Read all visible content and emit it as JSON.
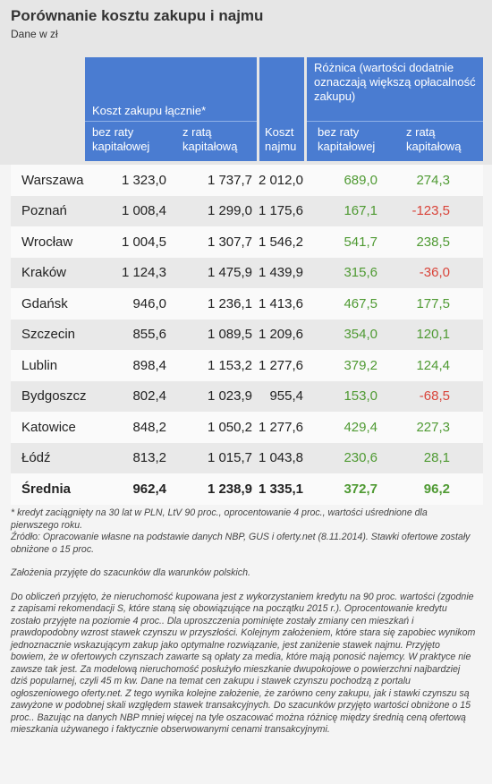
{
  "header": {
    "title": "Porównanie kosztu zakupu i najmu",
    "subtitle": "Dane w zł"
  },
  "table": {
    "group_headers": [
      "Koszt zakupu łącznie*",
      "Różnica (wartości dodatnie oznaczają większą opłacalność zakupu)"
    ],
    "columns": [
      "bez raty kapitałowej",
      "z ratą kapitałową",
      "Koszt najmu",
      "bez raty kapitałowej",
      "z ratą kapitałową"
    ],
    "rows": [
      [
        "Warszawa",
        "1 323,0",
        "1 737,7",
        "2 012,0",
        "689,0",
        "274,3"
      ],
      [
        "Poznań",
        "1 008,4",
        "1 299,0",
        "1 175,6",
        "167,1",
        "-123,5"
      ],
      [
        "Wrocław",
        "1 004,5",
        "1 307,7",
        "1 546,2",
        "541,7",
        "238,5"
      ],
      [
        "Kraków",
        "1 124,3",
        "1 475,9",
        "1 439,9",
        "315,6",
        "-36,0"
      ],
      [
        "Gdańsk",
        "946,0",
        "1 236,1",
        "1 413,6",
        "467,5",
        "177,5"
      ],
      [
        "Szczecin",
        "855,6",
        "1 089,5",
        "1 209,6",
        "354,0",
        "120,1"
      ],
      [
        "Lublin",
        "898,4",
        "1 153,2",
        "1 277,6",
        "379,2",
        "124,4"
      ],
      [
        "Bydgoszcz",
        "802,4",
        "1 023,9",
        "955,4",
        "153,0",
        "-68,5"
      ],
      [
        "Katowice",
        "848,2",
        "1 050,2",
        "1 277,6",
        "429,4",
        "227,3"
      ],
      [
        "Łódź",
        "813,2",
        "1 015,7",
        "1 043,8",
        "230,6",
        "28,1"
      ],
      [
        "Średnia",
        "962,4",
        "1 238,9",
        "1 335,1",
        "372,7",
        "96,2"
      ]
    ]
  },
  "notes": [
    "* kredyt zaciągnięty na 30 lat w PLN, LtV 90 proc., oprocentowanie 4 proc., wartości uśrednione dla pierwszego roku.",
    "Źródło: Opracowanie własne na podstawie danych NBP, GUS i oferty.net (8.11.2014). Stawki ofertowe zostały obniżone o 15 proc.",
    "Założenia przyjęte do szacunków dla warunków polskich.",
    "Do obliczeń przyjęto, że nieruchomość kupowana jest z wykorzystaniem kredytu na 90 proc. wartości (zgodnie z zapisami rekomendacji S, które staną się obowiązujące na początku 2015 r.). Oprocentowanie kredytu zostało przyjęte na poziomie 4 proc.. Dla uproszczenia pominięte zostały zmiany cen mieszkań i prawdopodobny wzrost stawek czynszu w przyszłości. Kolejnym założeniem, które stara się zapobiec wynikom jednoznacznie wskazującym zakup jako optymalne rozwiązanie, jest zaniżenie stawek najmu. Przyjęto bowiem, że w ofertowych czynszach zawarte są opłaty za media, które mają ponosić najemcy. W praktyce nie zawsze tak jest. Za modelową nieruchomość posłużyło mieszkanie dwupokojowe o powierzchni najbardziej dziś popularnej, czyli 45 m kw. Dane na temat cen zakupu i stawek czynszu pochodzą z portalu ogłoszeniowego oferty.net. Z tego wynika kolejne założenie, że zarówno ceny zakupu, jak i stawki czynszu są zawyżone w podobnej skali względem stawek transakcyjnych. Do szacunków przyjęto wartości obniżone o 15 proc.. Bazując na danych NBP mniej więcej na tyle oszacować można różnicę między średnią ceną ofertową mieszkania używanego i faktycznie obserwowanymi cenami transakcyjnymi."
  ]
}
